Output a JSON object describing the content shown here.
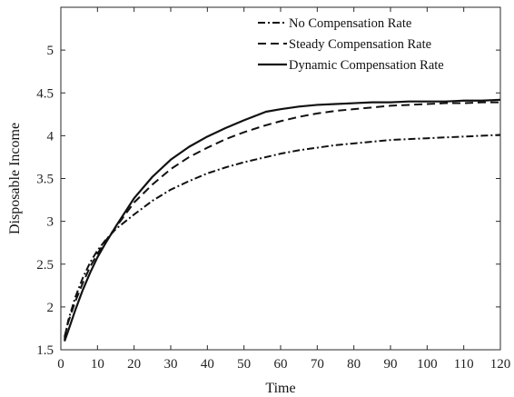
{
  "chart_data": {
    "type": "line",
    "title": "",
    "xlabel": "Time",
    "ylabel": "Disposable Income",
    "xlim": [
      0,
      120
    ],
    "ylim": [
      1.5,
      5.5
    ],
    "x_ticks": [
      0,
      10,
      20,
      30,
      40,
      50,
      60,
      70,
      80,
      90,
      100,
      110,
      120
    ],
    "y_ticks": [
      1.5,
      2,
      2.5,
      3,
      3.5,
      4,
      4.5,
      5
    ],
    "grid": false,
    "legend_position": "top-right",
    "series": [
      {
        "name": "No Compensation Rate",
        "line_style": "dash-dot",
        "x": [
          1,
          2,
          4,
          6,
          8,
          10,
          12,
          15,
          20,
          25,
          30,
          35,
          40,
          45,
          50,
          55,
          60,
          65,
          70,
          75,
          80,
          85,
          90,
          95,
          100,
          105,
          110,
          115,
          120
        ],
        "y": [
          1.62,
          1.84,
          2.12,
          2.34,
          2.52,
          2.66,
          2.77,
          2.91,
          3.08,
          3.24,
          3.37,
          3.47,
          3.56,
          3.63,
          3.69,
          3.74,
          3.79,
          3.83,
          3.86,
          3.89,
          3.91,
          3.93,
          3.95,
          3.96,
          3.97,
          3.98,
          3.99,
          4.0,
          4.01
        ]
      },
      {
        "name": "Steady Compensation Rate",
        "line_style": "dashed",
        "x": [
          1,
          2,
          4,
          6,
          8,
          10,
          12,
          15,
          20,
          25,
          30,
          35,
          40,
          45,
          50,
          55,
          60,
          65,
          70,
          75,
          80,
          85,
          90,
          95,
          100,
          105,
          110,
          115,
          120
        ],
        "y": [
          1.65,
          1.82,
          2.07,
          2.28,
          2.47,
          2.62,
          2.76,
          2.93,
          3.22,
          3.43,
          3.61,
          3.75,
          3.86,
          3.96,
          4.04,
          4.11,
          4.17,
          4.22,
          4.26,
          4.29,
          4.31,
          4.33,
          4.35,
          4.36,
          4.37,
          4.38,
          4.38,
          4.39,
          4.39
        ]
      },
      {
        "name": "Dynamic Compensation Rate",
        "line_style": "solid",
        "x": [
          1,
          2,
          4,
          6,
          8,
          10,
          12,
          15,
          20,
          25,
          30,
          35,
          40,
          45,
          50,
          56,
          60,
          65,
          70,
          75,
          80,
          85,
          90,
          95,
          100,
          105,
          110,
          115,
          120
        ],
        "y": [
          1.6,
          1.72,
          1.97,
          2.2,
          2.4,
          2.58,
          2.73,
          2.94,
          3.27,
          3.52,
          3.72,
          3.87,
          3.99,
          4.09,
          4.18,
          4.28,
          4.31,
          4.34,
          4.36,
          4.37,
          4.38,
          4.39,
          4.39,
          4.4,
          4.4,
          4.4,
          4.41,
          4.41,
          4.42
        ]
      }
    ]
  }
}
